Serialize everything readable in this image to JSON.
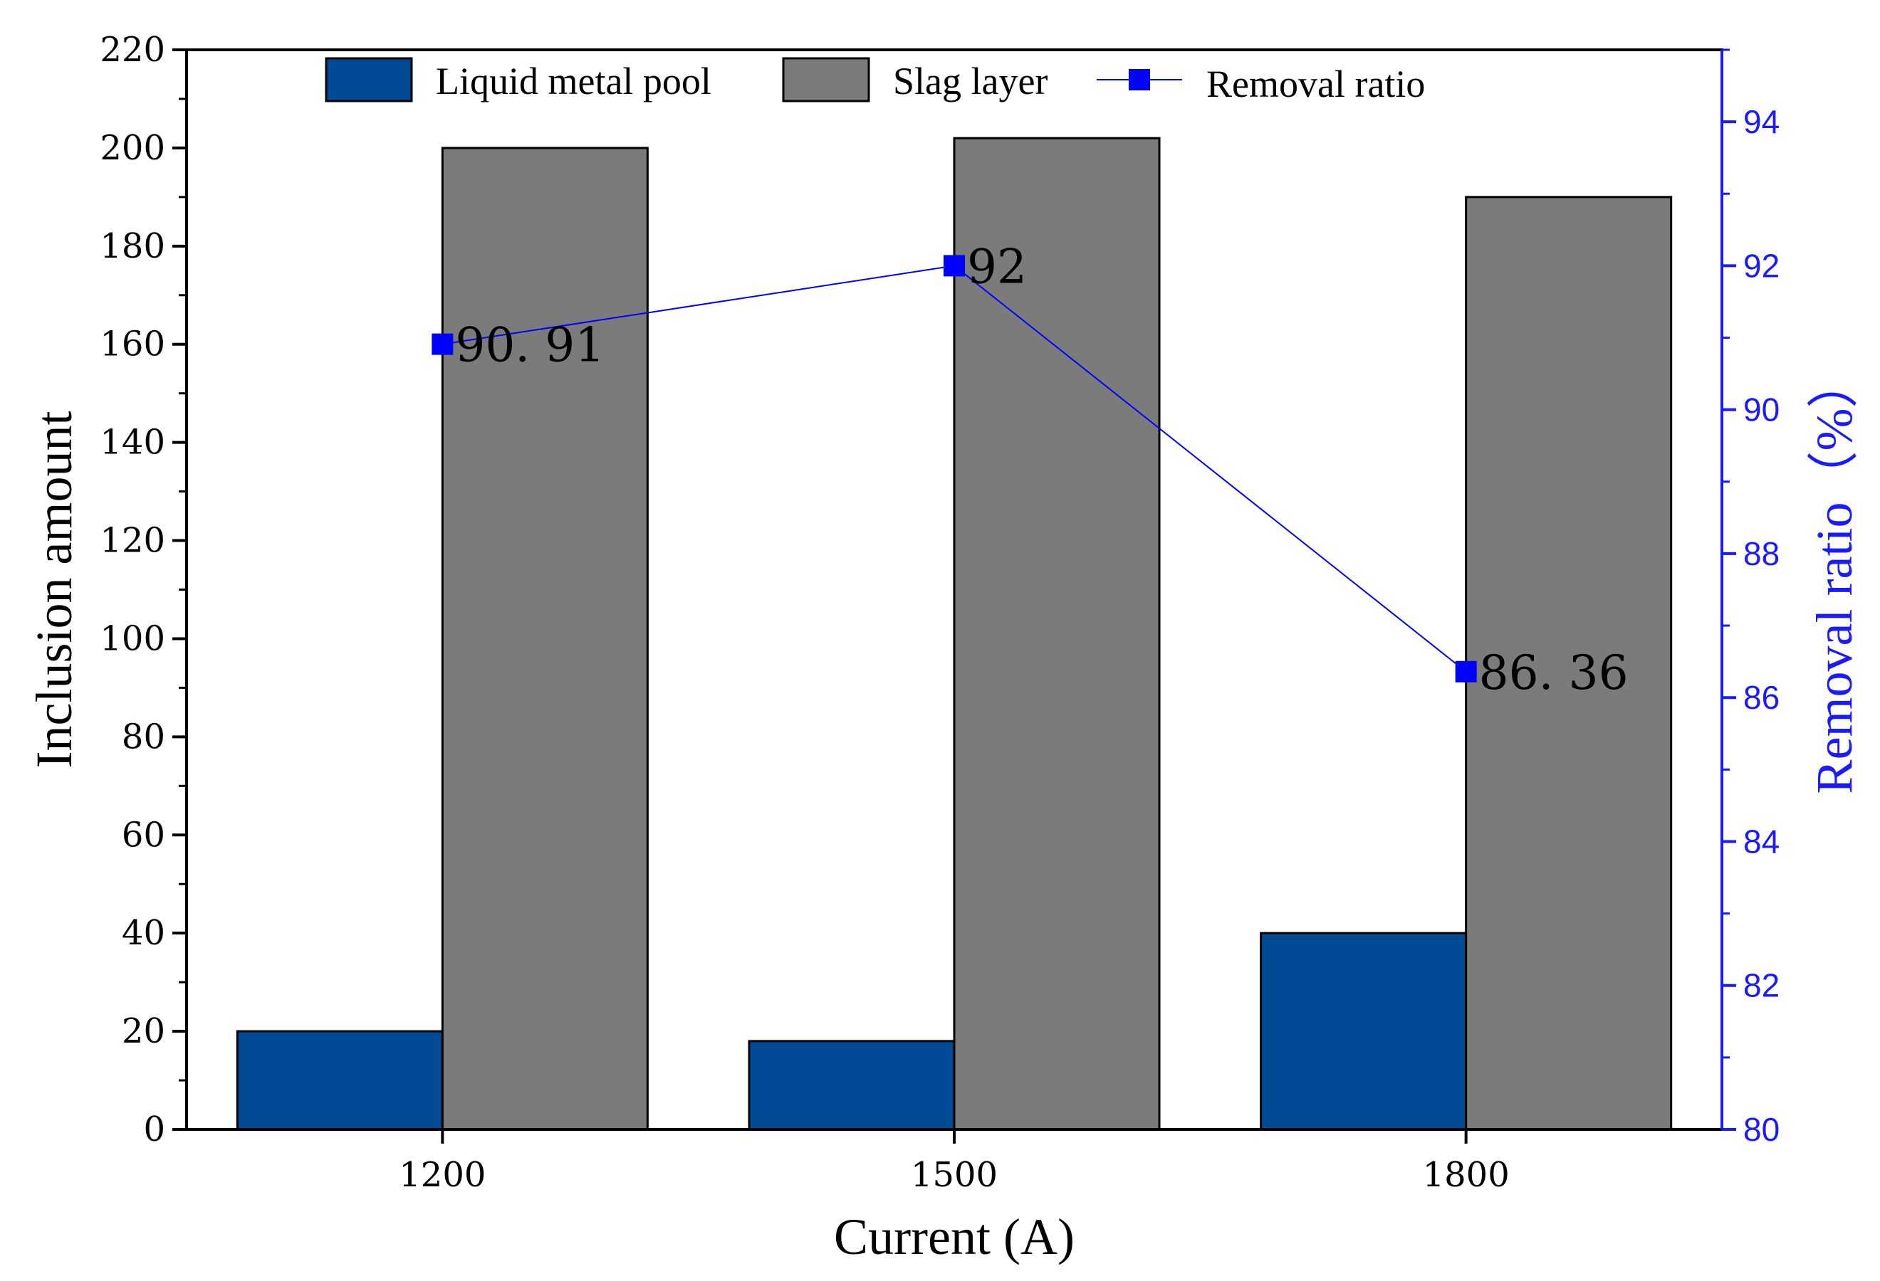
{
  "chart_data": {
    "type": "bar",
    "categories": [
      "1200",
      "1500",
      "1800"
    ],
    "series": [
      {
        "name": "Liquid metal pool",
        "axis": "left",
        "color": "#004a96",
        "values": [
          20,
          18,
          40
        ]
      },
      {
        "name": "Slag layer",
        "axis": "left",
        "color": "#7b7b7b",
        "values": [
          200,
          202,
          190
        ]
      }
    ],
    "line_series": {
      "name": "Removal ratio",
      "axis": "right",
      "color": "#0000ff",
      "values": [
        90.91,
        92,
        86.36
      ],
      "labels": [
        "90. 91",
        "92",
        "86. 36"
      ]
    },
    "xlabel": "Current (A)",
    "ylabel": "Inclusion amount",
    "ylabel_right": "Removal ratio（%）",
    "ylim": [
      0,
      220
    ],
    "ylim_right": [
      80,
      95
    ],
    "yticks": [
      "0",
      "20",
      "40",
      "60",
      "80",
      "100",
      "120",
      "140",
      "160",
      "180",
      "200",
      "220"
    ],
    "yticks_right": [
      "80",
      "82",
      "84",
      "86",
      "88",
      "90",
      "92",
      "94"
    ],
    "legend": {
      "position": "top",
      "items": [
        "Liquid metal pool",
        "Slag layer",
        "Removal ratio"
      ]
    }
  }
}
